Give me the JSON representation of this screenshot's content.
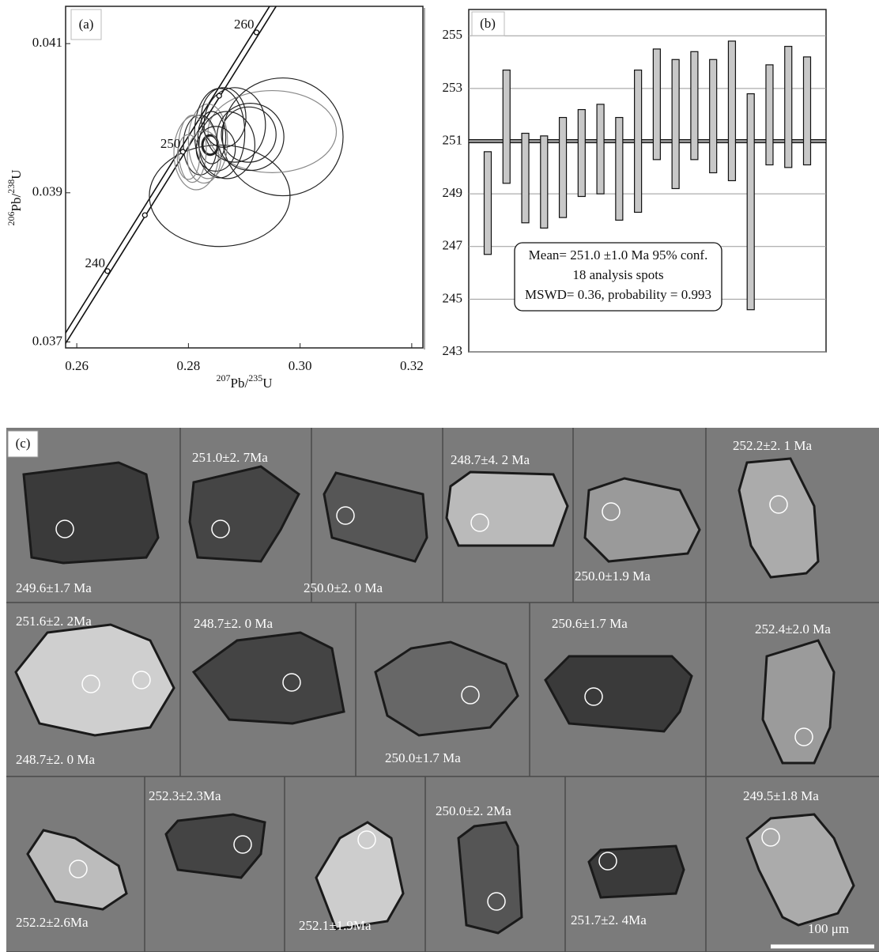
{
  "chart_data": [
    {
      "type": "concordia",
      "panel_label": "(a)",
      "xlabel": [
        "207",
        "Pb/",
        "235",
        "U"
      ],
      "ylabel": [
        "206",
        "Pb/",
        "238",
        "U"
      ],
      "xlim": [
        0.258,
        0.322
      ],
      "ylim": [
        0.03692,
        0.0415
      ],
      "xticks": [
        0.26,
        0.28,
        {
          "value": 0.3,
          "label": "0.30"
        },
        0.32
      ],
      "yticks": [
        0.037,
        0.039,
        0.041
      ],
      "concordia": {
        "x": [
          0.2655,
          0.2722,
          0.279,
          0.2855,
          0.2922
        ],
        "y": [
          0.03795,
          0.0387,
          0.03955,
          0.0403,
          0.04115
        ],
        "labels": [
          "240",
          null,
          "250",
          null,
          "260"
        ]
      },
      "ellipses": {
        "x": [
          0.2856,
          0.2969,
          0.295,
          0.2908,
          0.2839,
          0.2835,
          0.2821,
          0.2856,
          0.2814,
          0.2883,
          0.2842,
          0.2807,
          0.2849,
          0.2869,
          0.2828,
          0.2863,
          0.2911,
          0.28
        ],
        "y": [
          0.03896,
          0.03975,
          0.03982,
          0.03978,
          0.03964,
          0.03969,
          0.03964,
          0.0398,
          0.03954,
          0.03991,
          0.03974,
          0.03959,
          0.03959,
          0.03964,
          0.03948,
          0.04001,
          0.03975,
          0.03948
        ],
        "x_error": [
          0.0126,
          0.0108,
          0.0115,
          0.0049,
          0.0014,
          0.0035,
          0.003,
          0.0045,
          0.004,
          0.0055,
          0.0025,
          0.0025,
          0.0035,
          0.005,
          0.003,
          0.004,
          0.006,
          0.002
        ],
        "y_error": [
          0.00068,
          0.00079,
          0.00055,
          0.00037,
          0.00013,
          0.0005,
          0.0004,
          0.0006,
          0.0005,
          0.0005,
          0.00035,
          0.00045,
          0.0003,
          0.00045,
          0.00035,
          0.0004,
          0.00045,
          0.0003
        ]
      },
      "color": "#222222"
    },
    {
      "type": "range",
      "panel_label": "(b)",
      "lows": [
        246.7,
        249.4,
        247.9,
        247.7,
        248.1,
        248.9,
        249.0,
        248.0,
        248.3,
        250.3,
        249.2,
        250.3,
        249.8,
        249.5,
        244.6,
        250.1,
        250.0,
        250.1
      ],
      "highs": [
        250.6,
        253.7,
        251.3,
        251.2,
        251.9,
        252.2,
        252.4,
        251.9,
        253.7,
        254.5,
        254.1,
        254.4,
        254.1,
        254.8,
        252.8,
        253.9,
        254.6,
        254.2
      ],
      "ylim": [
        243,
        256
      ],
      "yticks": [
        243,
        245,
        247,
        249,
        251,
        253,
        255
      ],
      "grid": true,
      "mean": 251.0,
      "color": "#c8c8c8",
      "annotation": [
        "Mean= 251.0 ±1.0 Ma   95% conf.",
        "18 analysis spots",
        "MSWD= 0.36, probability = 0.993"
      ]
    }
  ],
  "panel_c": {
    "label": "(c)",
    "ages": [
      "249.6±1.7 Ma",
      "251.0±2. 7Ma",
      "250.0±2. 0 Ma",
      "248.7±4. 2 Ma",
      "250.0±1.9 Ma",
      "252.2±2. 1 Ma",
      "251.6±2. 2Ma",
      "248.7±2. 0 Ma",
      "248.7±2. 0 Ma",
      "250.0±1.7 Ma",
      "250.6±1.7 Ma",
      "252.4±2.0 Ma",
      "252.2±2.6Ma",
      "252.3±2.3Ma",
      "252.1±1.9Ma",
      "250.0±2. 2Ma",
      "251.7±2. 4Ma",
      "249.5±1.8 Ma"
    ],
    "scale_bar": "100 μm"
  }
}
